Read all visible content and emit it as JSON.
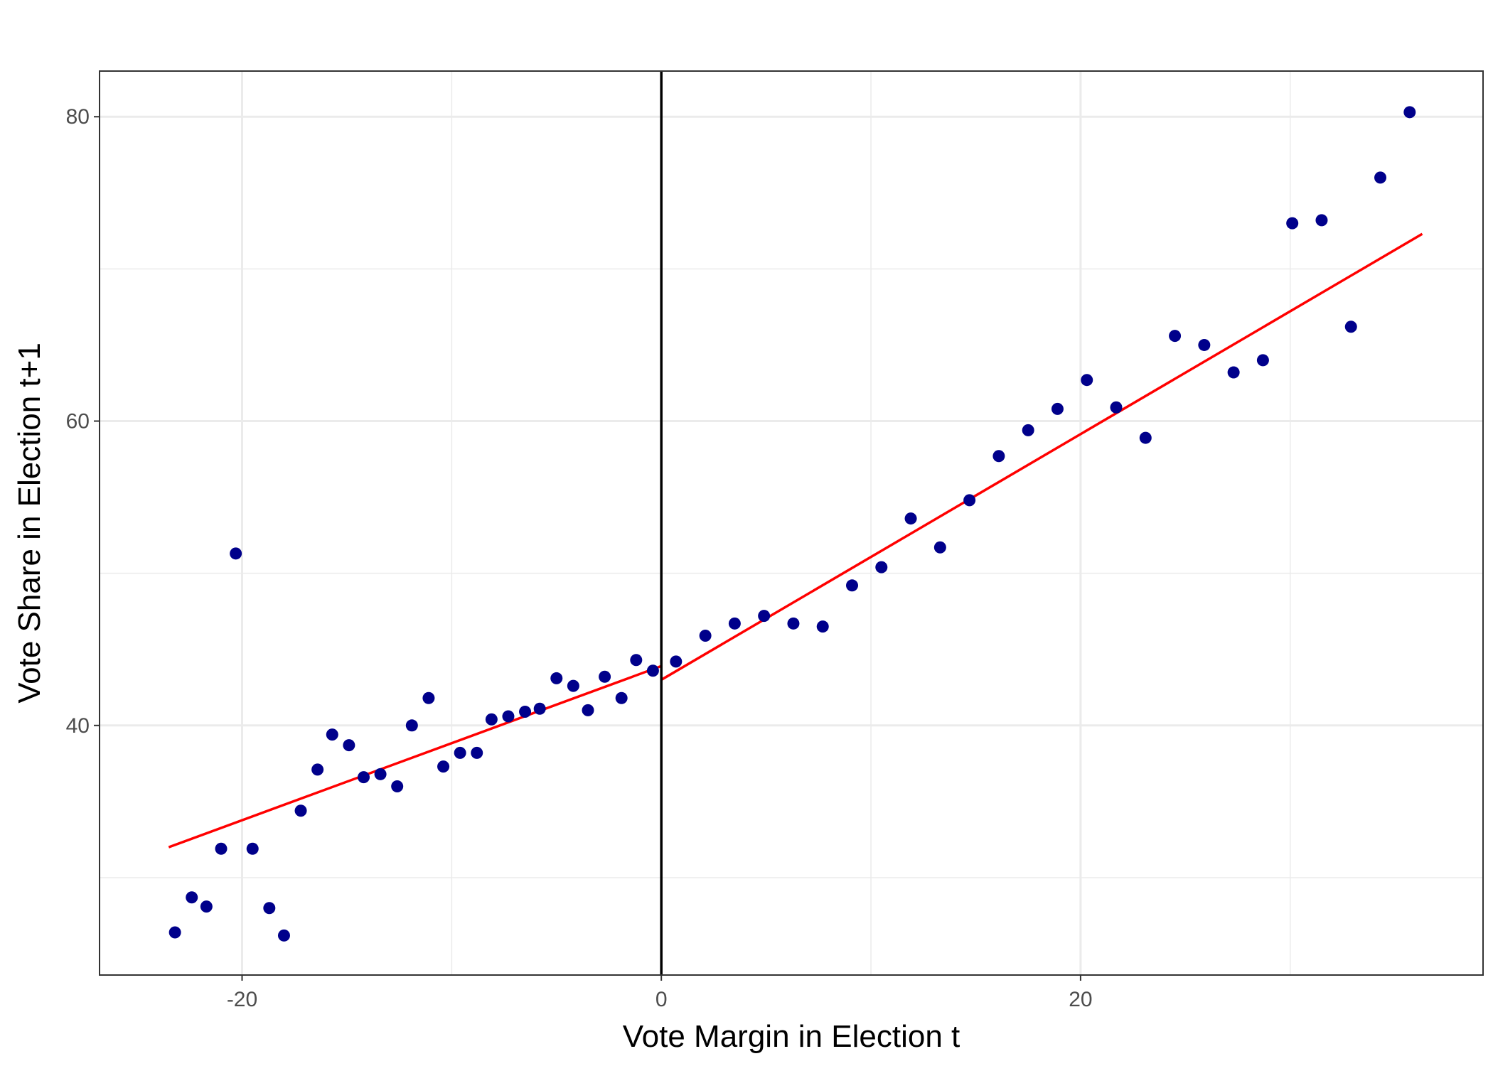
{
  "chart_data": {
    "type": "scatter",
    "title": "",
    "xlabel": "Vote Margin in Election t",
    "ylabel": "Vote Share in Election t+1",
    "xlim": [
      -26.8,
      39.2
    ],
    "ylim": [
      23.6,
      83.0
    ],
    "x_ticks": [
      -20,
      0,
      20
    ],
    "x_tick_labels": [
      "-20",
      "0",
      "20"
    ],
    "y_ticks": [
      40,
      60,
      80
    ],
    "y_tick_labels": [
      "40",
      "60",
      "80"
    ],
    "x_minor_grid": [
      -10,
      10,
      30
    ],
    "y_minor_grid": [
      30,
      50,
      70
    ],
    "grid": true,
    "cutoff_line": {
      "x": 0,
      "color": "#000000"
    },
    "point_color": "#00008B",
    "fit_color": "#FF0000",
    "points": [
      {
        "x": -23.2,
        "y": 26.4
      },
      {
        "x": -22.4,
        "y": 28.7
      },
      {
        "x": -21.7,
        "y": 28.1
      },
      {
        "x": -21.0,
        "y": 31.9
      },
      {
        "x": -20.3,
        "y": 51.3
      },
      {
        "x": -19.5,
        "y": 31.9
      },
      {
        "x": -18.7,
        "y": 28.0
      },
      {
        "x": -18.0,
        "y": 26.2
      },
      {
        "x": -17.2,
        "y": 34.4
      },
      {
        "x": -16.4,
        "y": 37.1
      },
      {
        "x": -15.7,
        "y": 39.4
      },
      {
        "x": -14.9,
        "y": 38.7
      },
      {
        "x": -14.2,
        "y": 36.6
      },
      {
        "x": -13.4,
        "y": 36.8
      },
      {
        "x": -12.6,
        "y": 36.0
      },
      {
        "x": -11.9,
        "y": 40.0
      },
      {
        "x": -11.1,
        "y": 41.8
      },
      {
        "x": -10.4,
        "y": 37.3
      },
      {
        "x": -9.6,
        "y": 38.2
      },
      {
        "x": -8.8,
        "y": 38.2
      },
      {
        "x": -8.1,
        "y": 40.4
      },
      {
        "x": -7.3,
        "y": 40.6
      },
      {
        "x": -6.5,
        "y": 40.9
      },
      {
        "x": -5.8,
        "y": 41.1
      },
      {
        "x": -5.0,
        "y": 43.1
      },
      {
        "x": -4.2,
        "y": 42.6
      },
      {
        "x": -3.5,
        "y": 41.0
      },
      {
        "x": -2.7,
        "y": 43.2
      },
      {
        "x": -1.9,
        "y": 41.8
      },
      {
        "x": -1.2,
        "y": 44.3
      },
      {
        "x": -0.4,
        "y": 43.6
      },
      {
        "x": 0.7,
        "y": 44.2
      },
      {
        "x": 2.1,
        "y": 45.9
      },
      {
        "x": 3.5,
        "y": 46.7
      },
      {
        "x": 4.9,
        "y": 47.2
      },
      {
        "x": 6.3,
        "y": 46.7
      },
      {
        "x": 7.7,
        "y": 46.5
      },
      {
        "x": 9.1,
        "y": 49.2
      },
      {
        "x": 10.5,
        "y": 50.4
      },
      {
        "x": 11.9,
        "y": 53.6
      },
      {
        "x": 13.3,
        "y": 51.7
      },
      {
        "x": 14.7,
        "y": 54.8
      },
      {
        "x": 16.1,
        "y": 57.7
      },
      {
        "x": 17.5,
        "y": 59.4
      },
      {
        "x": 18.9,
        "y": 60.8
      },
      {
        "x": 20.3,
        "y": 62.7
      },
      {
        "x": 21.7,
        "y": 60.9
      },
      {
        "x": 23.1,
        "y": 58.9
      },
      {
        "x": 24.5,
        "y": 65.6
      },
      {
        "x": 25.9,
        "y": 65.0
      },
      {
        "x": 27.3,
        "y": 63.2
      },
      {
        "x": 28.7,
        "y": 64.0
      },
      {
        "x": 30.1,
        "y": 73.0
      },
      {
        "x": 31.5,
        "y": 73.2
      },
      {
        "x": 32.9,
        "y": 66.2
      },
      {
        "x": 34.3,
        "y": 76.0
      },
      {
        "x": 35.7,
        "y": 80.3
      }
    ],
    "fit_lines": [
      {
        "x": [
          -23.5,
          0.0
        ],
        "y": [
          32.0,
          43.9
        ]
      },
      {
        "x": [
          0.0,
          36.3
        ],
        "y": [
          43.0,
          72.3
        ]
      }
    ]
  }
}
